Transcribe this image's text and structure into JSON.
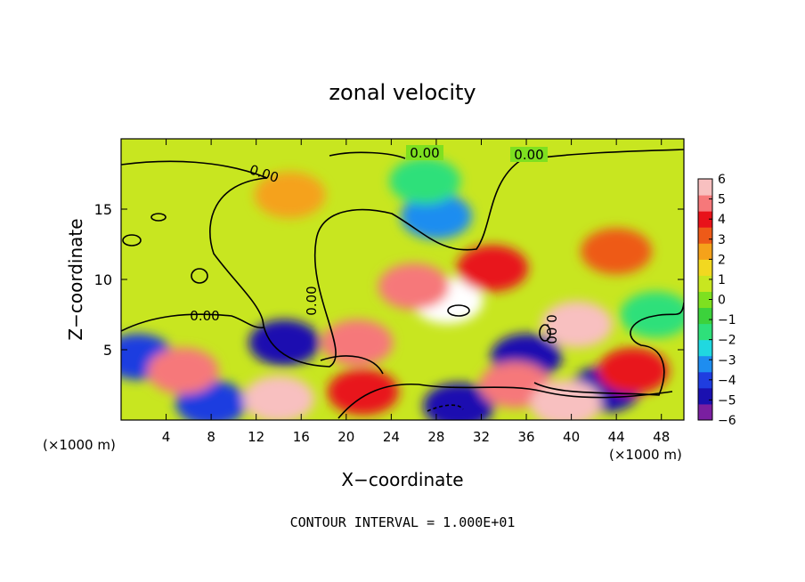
{
  "chart_data": {
    "type": "heatmap",
    "title": "zonal velocity",
    "xlabel": "X−coordinate",
    "ylabel": "Z−coordinate",
    "x_unit": "(×1000 m)",
    "z_unit": "(×1000 m)",
    "xlim": [
      0,
      50
    ],
    "ylim": [
      0,
      20
    ],
    "x_ticks": [
      4,
      8,
      12,
      16,
      20,
      24,
      28,
      32,
      36,
      40,
      44,
      48
    ],
    "y_ticks": [
      5,
      10,
      15
    ],
    "colorbar": {
      "ticks": [
        "6",
        "5",
        "4",
        "3",
        "2",
        "1",
        "0",
        "−1",
        "−2",
        "−3",
        "−4",
        "−5",
        "−6"
      ],
      "range": [
        -6,
        6
      ],
      "colors": [
        "#7a1fa0",
        "#1a10b0",
        "#1f3de0",
        "#1e8df0",
        "#20d8e0",
        "#2ee07a",
        "#3cd23c",
        "#7ee020",
        "#c8e620",
        "#f2d820",
        "#f5a21a",
        "#ee5a18",
        "#e8121a",
        "#f6787a",
        "#f8c0c0"
      ]
    },
    "contour_label": "0.00",
    "footer": "CONTOUR INTERVAL = 1.000E+01",
    "features": [
      {
        "x": 29,
        "z": 8.5,
        "u": 8
      },
      {
        "x": 26,
        "z": 9.5,
        "u": 5
      },
      {
        "x": 33,
        "z": 10.8,
        "u": 4
      },
      {
        "x": 40.5,
        "z": 6.8,
        "u": 6
      },
      {
        "x": 15,
        "z": 16,
        "u": 2
      },
      {
        "x": 44,
        "z": 12,
        "u": 3
      },
      {
        "x": 28,
        "z": 14.5,
        "u": -3.5
      },
      {
        "x": 27,
        "z": 17,
        "u": -1.5
      },
      {
        "x": 14.5,
        "z": 5.5,
        "u": -5
      },
      {
        "x": 36,
        "z": 4.5,
        "u": -5
      },
      {
        "x": 43,
        "z": 2.2,
        "u": -5
      },
      {
        "x": 1.5,
        "z": 4.5,
        "u": -4
      },
      {
        "x": 30,
        "z": 1,
        "u": -5
      },
      {
        "x": 8,
        "z": 1.2,
        "u": -4
      },
      {
        "x": 5.5,
        "z": 3.5,
        "u": 5
      },
      {
        "x": 14,
        "z": 1.5,
        "u": 6
      },
      {
        "x": 21.5,
        "z": 2,
        "u": 4
      },
      {
        "x": 35,
        "z": 2.5,
        "u": 5
      },
      {
        "x": 39.5,
        "z": 1.2,
        "u": 6
      },
      {
        "x": 45.5,
        "z": 3.5,
        "u": 4
      },
      {
        "x": 21,
        "z": 5.5,
        "u": 5
      },
      {
        "x": 47.5,
        "z": 7.5,
        "u": -2
      }
    ]
  }
}
